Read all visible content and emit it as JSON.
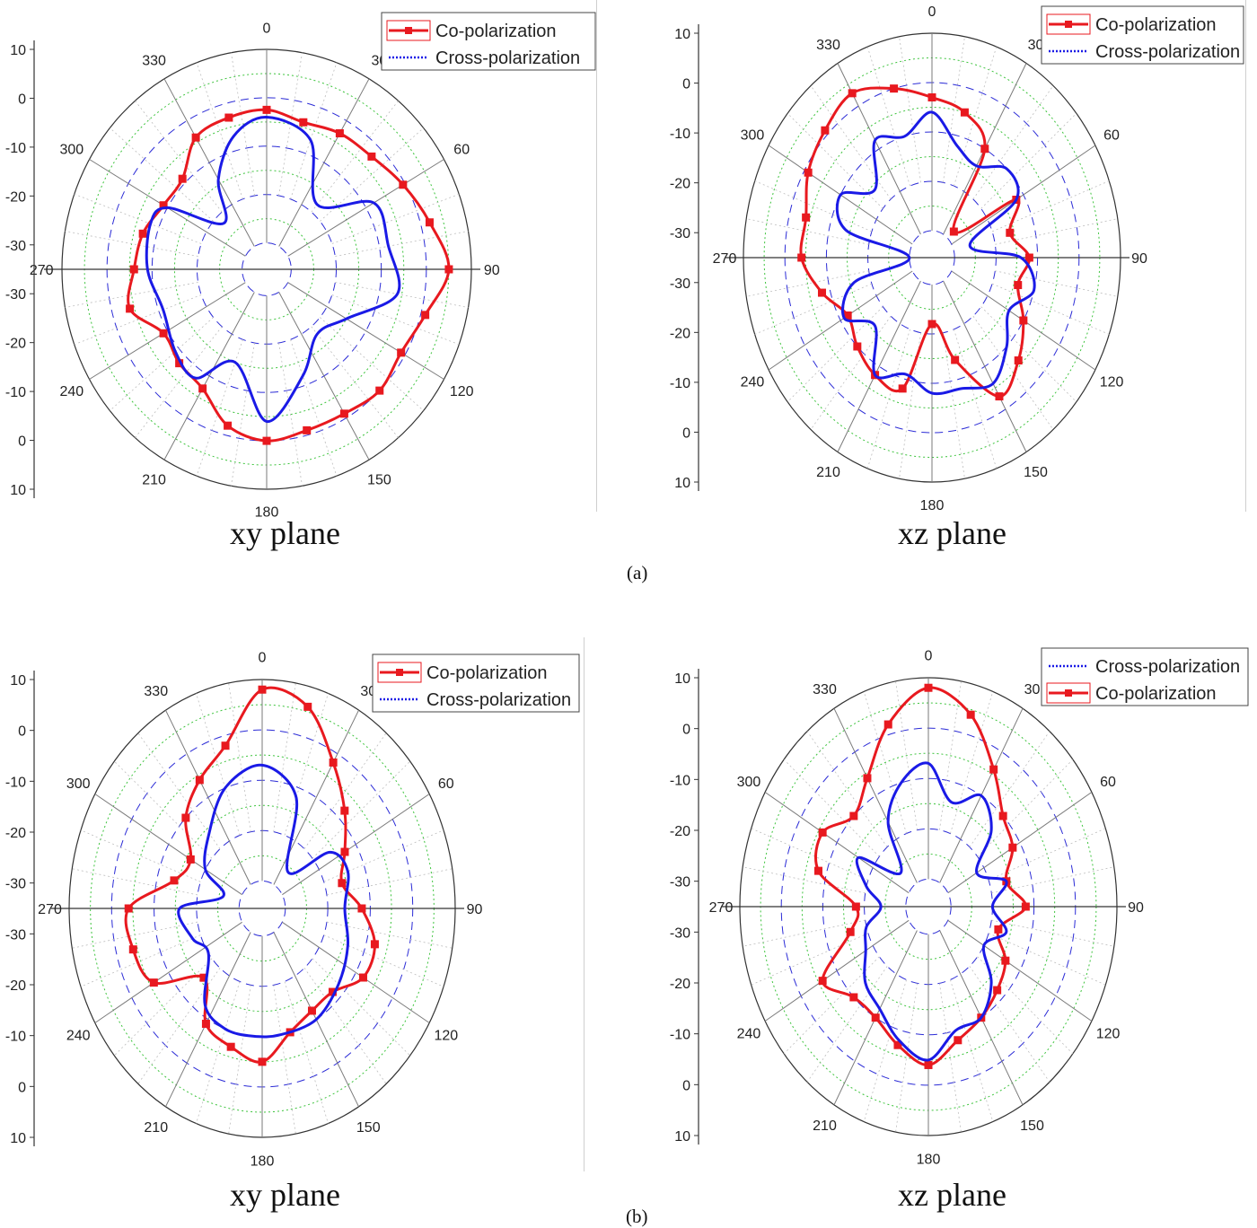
{
  "figure": {
    "labels": {
      "sub_a": "(a)",
      "sub_b": "(b)",
      "xy": "xy plane",
      "xz": "xz plane"
    },
    "colors": {
      "co": "#e8191f",
      "cross": "#1a1ae6",
      "ring_dash": "#2b2bd6",
      "ring_dot": "#3ec43e",
      "spoke": "#7a7a7a",
      "axis": "#333333"
    }
  },
  "chart_data": [
    {
      "id": "a-xy",
      "type": "polar-line",
      "radial_ticks": [
        "10",
        "0",
        "-10",
        "-20",
        "-30",
        "-30",
        "-20",
        "-10",
        "0",
        "10"
      ],
      "radial_range": [
        -30,
        10
      ],
      "angle_ticks": [
        "0",
        "30",
        "60",
        "90",
        "120",
        "150",
        "180",
        "210",
        "240",
        "270",
        "300",
        "330"
      ],
      "legend": [
        "Co-polarization",
        "Cross-polarization"
      ],
      "series": [
        {
          "name": "Co-polarization",
          "angles": [
            0,
            15,
            30,
            45,
            60,
            75,
            90,
            105,
            120,
            135,
            150,
            165,
            180,
            195,
            210,
            225,
            240,
            255,
            270,
            285,
            300,
            315,
            330,
            345
          ],
          "values": [
            -2.5,
            -4,
            -3,
            -2.5,
            -0.5,
            2,
            5,
            1,
            -1,
            0,
            -1,
            -1,
            0,
            -2,
            -7,
            -8,
            -9,
            -4,
            -6,
            -7,
            -9,
            -9,
            -4,
            -3
          ]
        },
        {
          "name": "Cross-polarization",
          "angles": [
            0,
            20,
            40,
            60,
            80,
            100,
            120,
            140,
            160,
            180,
            200,
            215,
            230,
            250,
            270,
            290,
            300,
            315,
            330,
            345
          ],
          "values": [
            -4,
            -7,
            -18,
            -8,
            -8,
            -6,
            -15,
            -18,
            -12,
            -4,
            -15,
            -8,
            -9,
            -11,
            -9,
            -8,
            -10,
            -22,
            -14,
            -7
          ]
        }
      ]
    },
    {
      "id": "a-xz",
      "type": "polar-line",
      "radial_ticks": [
        "10",
        "0",
        "-10",
        "-20",
        "-30",
        "-30",
        "-20",
        "-10",
        "0",
        "10"
      ],
      "radial_range": [
        -30,
        10
      ],
      "angle_ticks": [
        "0",
        "30",
        "60",
        "90",
        "120",
        "150",
        "180",
        "210",
        "240",
        "270",
        "300",
        "330"
      ],
      "legend": [
        "Co-polarization",
        "Cross-polarization"
      ],
      "series": [
        {
          "name": "Co-polarization",
          "angles": [
            0,
            15,
            30,
            45,
            60,
            75,
            90,
            105,
            120,
            135,
            150,
            165,
            180,
            195,
            210,
            225,
            240,
            255,
            270,
            285,
            300,
            315,
            330,
            345
          ],
          "values": [
            -3,
            -5,
            -10,
            -28,
            -12,
            -16,
            -12,
            -14,
            -10,
            -6,
            -3,
            -14,
            -22,
            -8,
            -8,
            -10,
            -12,
            -8,
            -4,
            -4,
            -1,
            1,
            3,
            0
          ]
        },
        {
          "name": "Cross-polarization",
          "angles": [
            0,
            15,
            30,
            45,
            60,
            75,
            90,
            105,
            120,
            135,
            150,
            165,
            180,
            195,
            210,
            225,
            240,
            255,
            270,
            285,
            300,
            315,
            330,
            345
          ],
          "values": [
            -6,
            -12,
            -14,
            -10,
            -12,
            -26,
            -14,
            -10,
            -14,
            -10,
            -6,
            -8,
            -8,
            -11,
            -8,
            -16,
            -11,
            -16,
            -30,
            -14,
            -10,
            -16,
            -8,
            -10
          ]
        }
      ]
    },
    {
      "id": "b-xy",
      "type": "polar-line",
      "radial_ticks": [
        "10",
        "0",
        "-10",
        "-20",
        "-30",
        "-30",
        "-20",
        "-10",
        "0",
        "10"
      ],
      "radial_range": [
        -30,
        10
      ],
      "angle_ticks": [
        "0",
        "30",
        "60",
        "90",
        "120",
        "150",
        "180",
        "210",
        "240",
        "270",
        "300",
        "330"
      ],
      "legend": [
        "Co-polarization",
        "Cross-polarization"
      ],
      "series": [
        {
          "name": "Co-polarization",
          "angles": [
            0,
            15,
            30,
            45,
            60,
            75,
            90,
            105,
            120,
            135,
            150,
            165,
            180,
            195,
            210,
            225,
            240,
            255,
            270,
            285,
            300,
            315,
            330,
            345
          ],
          "values": [
            8,
            6,
            -2,
            -8,
            -13,
            -16,
            -12,
            -8,
            -8,
            -12,
            -12,
            -10,
            -5,
            -7,
            -9,
            -16,
            -6,
            -4,
            -4,
            -14,
            -16,
            -10,
            -6,
            -2
          ]
        },
        {
          "name": "Cross-polarization",
          "angles": [
            0,
            20,
            40,
            55,
            70,
            90,
            110,
            130,
            150,
            170,
            185,
            200,
            215,
            235,
            250,
            270,
            285,
            300,
            320,
            340
          ],
          "values": [
            -7,
            -12,
            -26,
            -16,
            -14,
            -16,
            -14,
            -12,
            -10,
            -10,
            -10,
            -10,
            -12,
            -20,
            -18,
            -16,
            -26,
            -20,
            -16,
            -10
          ]
        }
      ]
    },
    {
      "id": "b-xz",
      "type": "polar-line",
      "radial_ticks": [
        "10",
        "0",
        "-10",
        "-20",
        "-30",
        "-30",
        "-20",
        "-10",
        "0",
        "10"
      ],
      "radial_range": [
        -30,
        10
      ],
      "angle_ticks": [
        "0",
        "30",
        "60",
        "90",
        "120",
        "150",
        "180",
        "210",
        "240",
        "270",
        "300",
        "330"
      ],
      "legend": [
        "Cross-polarization",
        "Co-polarization"
      ],
      "series": [
        {
          "name": "Co-polarization",
          "angles": [
            0,
            15,
            30,
            45,
            60,
            75,
            90,
            105,
            120,
            135,
            150,
            165,
            180,
            195,
            210,
            225,
            240,
            255,
            270,
            285,
            300,
            315,
            330,
            345
          ],
          "values": [
            8,
            4,
            -4,
            -10,
            -12,
            -16,
            -12,
            -18,
            -14,
            -12,
            -10,
            -8,
            -4,
            -7,
            -10,
            -10,
            -6,
            -16,
            -18,
            -8,
            -6,
            -10,
            -6,
            2
          ]
        },
        {
          "name": "Cross-polarization",
          "angles": [
            0,
            15,
            30,
            45,
            60,
            75,
            90,
            105,
            120,
            135,
            150,
            165,
            180,
            195,
            210,
            225,
            240,
            255,
            270,
            285,
            300,
            315,
            330,
            345
          ],
          "values": [
            -7,
            -14,
            -10,
            -14,
            -22,
            -16,
            -20,
            -16,
            -20,
            -14,
            -10,
            -10,
            -5,
            -8,
            -12,
            -14,
            -18,
            -20,
            -24,
            -20,
            -16,
            -26,
            -16,
            -10
          ]
        }
      ]
    }
  ]
}
